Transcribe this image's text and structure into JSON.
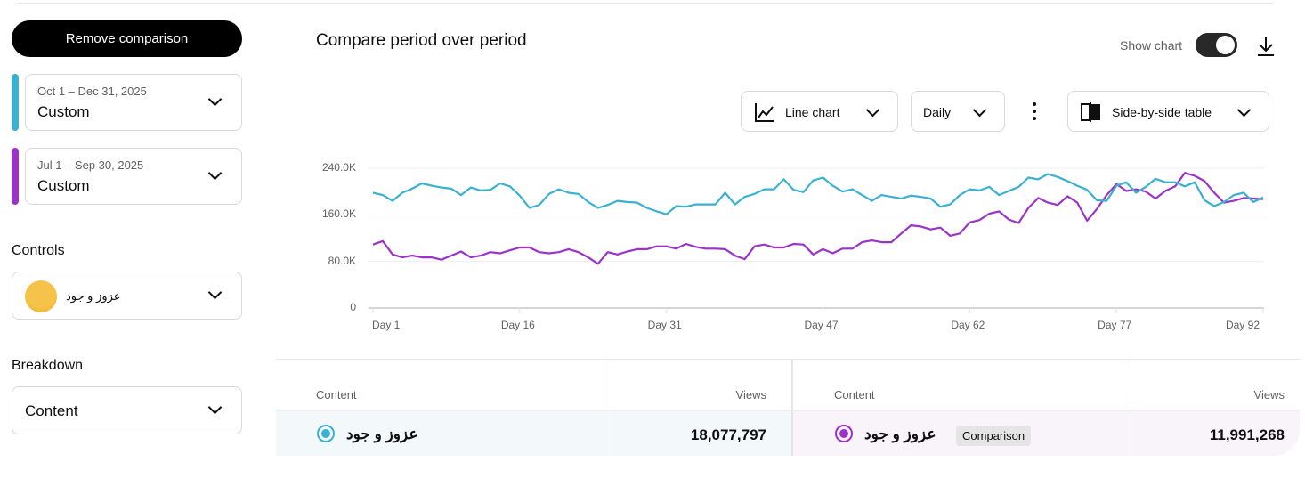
{
  "sidebar": {
    "remove_comparison": "Remove comparison",
    "period_primary": {
      "range": "Oct 1 – Dec 31, 2025",
      "preset": "Custom",
      "color": "#3ab0d3"
    },
    "period_comparison": {
      "range": "Jul 1 – Sep 30, 2025",
      "preset": "Custom",
      "color": "#9b33c9"
    },
    "controls_label": "Controls",
    "channel_name": "عزوز و جود",
    "breakdown_label": "Breakdown",
    "breakdown_value": "Content"
  },
  "header": {
    "title": "Compare period over period",
    "show_chart_label": "Show chart",
    "show_chart_on": true
  },
  "toolbar": {
    "chart_type": "Line chart",
    "interval": "Daily",
    "table_mode": "Side-by-side table"
  },
  "chart_data": {
    "type": "line",
    "x": "Day 1 … Day 92",
    "xticks": [
      "Day 1",
      "Day 16",
      "Day 31",
      "Day 47",
      "Day 62",
      "Day 77",
      "Day 92"
    ],
    "xtick_days": [
      1,
      16,
      31,
      47,
      62,
      77,
      92
    ],
    "yticks": [
      "0",
      "80.0K",
      "160.0K",
      "240.0K"
    ],
    "ylim": [
      0,
      240000
    ],
    "grid": true,
    "series": [
      {
        "color": "#3ab0d3",
        "values_k": [
          198,
          194,
          184,
          198,
          205,
          214,
          210,
          207,
          205,
          194,
          207,
          202,
          203,
          214,
          209,
          193,
          172,
          177,
          196,
          204,
          198,
          196,
          182,
          172,
          177,
          184,
          182,
          181,
          172,
          166,
          161,
          175,
          174,
          178,
          178,
          178,
          198,
          178,
          191,
          196,
          204,
          204,
          221,
          203,
          199,
          219,
          224,
          210,
          200,
          204,
          194,
          184,
          194,
          191,
          188,
          193,
          191,
          188,
          174,
          178,
          194,
          204,
          202,
          208,
          194,
          201,
          208,
          224,
          221,
          230,
          225,
          218,
          210,
          203,
          185,
          184,
          210,
          216,
          198,
          208,
          222,
          216,
          216,
          209,
          216,
          185,
          175,
          182,
          194,
          198,
          182,
          190
        ]
      },
      {
        "color": "#9b33c9",
        "values_k": [
          109,
          115,
          92,
          87,
          90,
          87,
          87,
          83,
          90,
          97,
          87,
          90,
          96,
          94,
          99,
          104,
          104,
          96,
          94,
          96,
          101,
          96,
          87,
          76,
          96,
          92,
          97,
          101,
          101,
          106,
          106,
          102,
          110,
          105,
          102,
          102,
          101,
          90,
          84,
          106,
          109,
          104,
          104,
          110,
          109,
          92,
          101,
          94,
          102,
          102,
          113,
          116,
          113,
          113,
          128,
          142,
          140,
          135,
          138,
          124,
          128,
          147,
          151,
          162,
          166,
          152,
          146,
          172,
          189,
          181,
          177,
          192,
          181,
          150,
          170,
          194,
          213,
          201,
          204,
          200,
          188,
          201,
          209,
          232,
          227,
          218,
          198,
          181,
          184,
          189,
          188,
          187
        ]
      }
    ]
  },
  "table": {
    "left": {
      "col_content": "Content",
      "col_views": "Views",
      "row": {
        "name": "عزوز و جود",
        "views": "18,077,797"
      }
    },
    "right": {
      "col_content": "Content",
      "col_views": "Views",
      "row": {
        "name": "عزوز و جود",
        "badge": "Comparison",
        "views": "11,991,268"
      }
    }
  }
}
